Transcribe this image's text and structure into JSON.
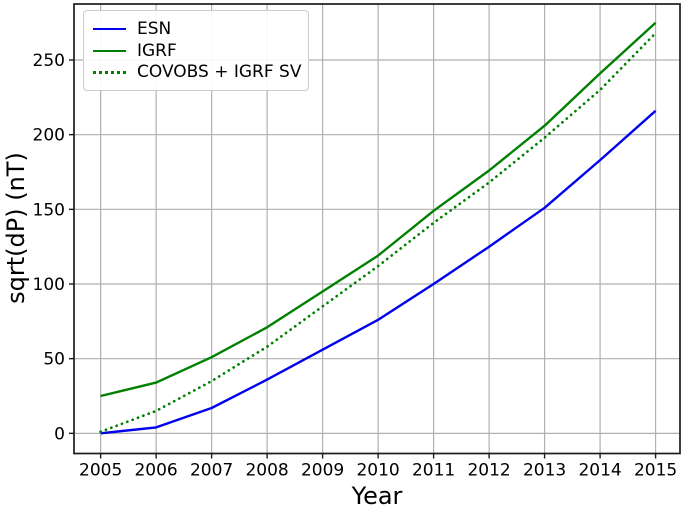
{
  "chart_data": {
    "type": "line",
    "title": "",
    "xlabel": "Year",
    "ylabel": "sqrt(dP) (nT)",
    "x": [
      2005,
      2006,
      2007,
      2008,
      2009,
      2010,
      2011,
      2012,
      2013,
      2014,
      2015
    ],
    "x_tick_labels": [
      "2005",
      "2006",
      "2007",
      "2008",
      "2009",
      "2010",
      "2011",
      "2012",
      "2013",
      "2014",
      "2015"
    ],
    "y_ticks": [
      0,
      50,
      100,
      150,
      200,
      250
    ],
    "y_tick_labels": [
      "0",
      "50",
      "100",
      "150",
      "200",
      "250"
    ],
    "xlim": [
      2004.52,
      2015.44
    ],
    "ylim": [
      -13.5,
      287.5
    ],
    "grid": true,
    "legend": {
      "position": "upper-left"
    },
    "series": [
      {
        "name": "ESN",
        "color": "#0000ee",
        "style": "solid",
        "values": [
          0,
          4,
          17,
          36,
          56,
          76,
          100,
          125,
          151,
          183,
          216
        ]
      },
      {
        "name": "IGRF",
        "color": "#008000",
        "style": "solid",
        "values": [
          25,
          34,
          51,
          71,
          95,
          119,
          149,
          176,
          206,
          241,
          275
        ]
      },
      {
        "name": "COVOBS + IGRF SV",
        "color": "#008000",
        "style": "dotted",
        "values": [
          1,
          15,
          35,
          58,
          85,
          112,
          141,
          168,
          198,
          230,
          268
        ]
      }
    ],
    "colors": {
      "grid": "#b0b0b0",
      "frame": "#1c1c1c",
      "text": "#000000"
    }
  }
}
